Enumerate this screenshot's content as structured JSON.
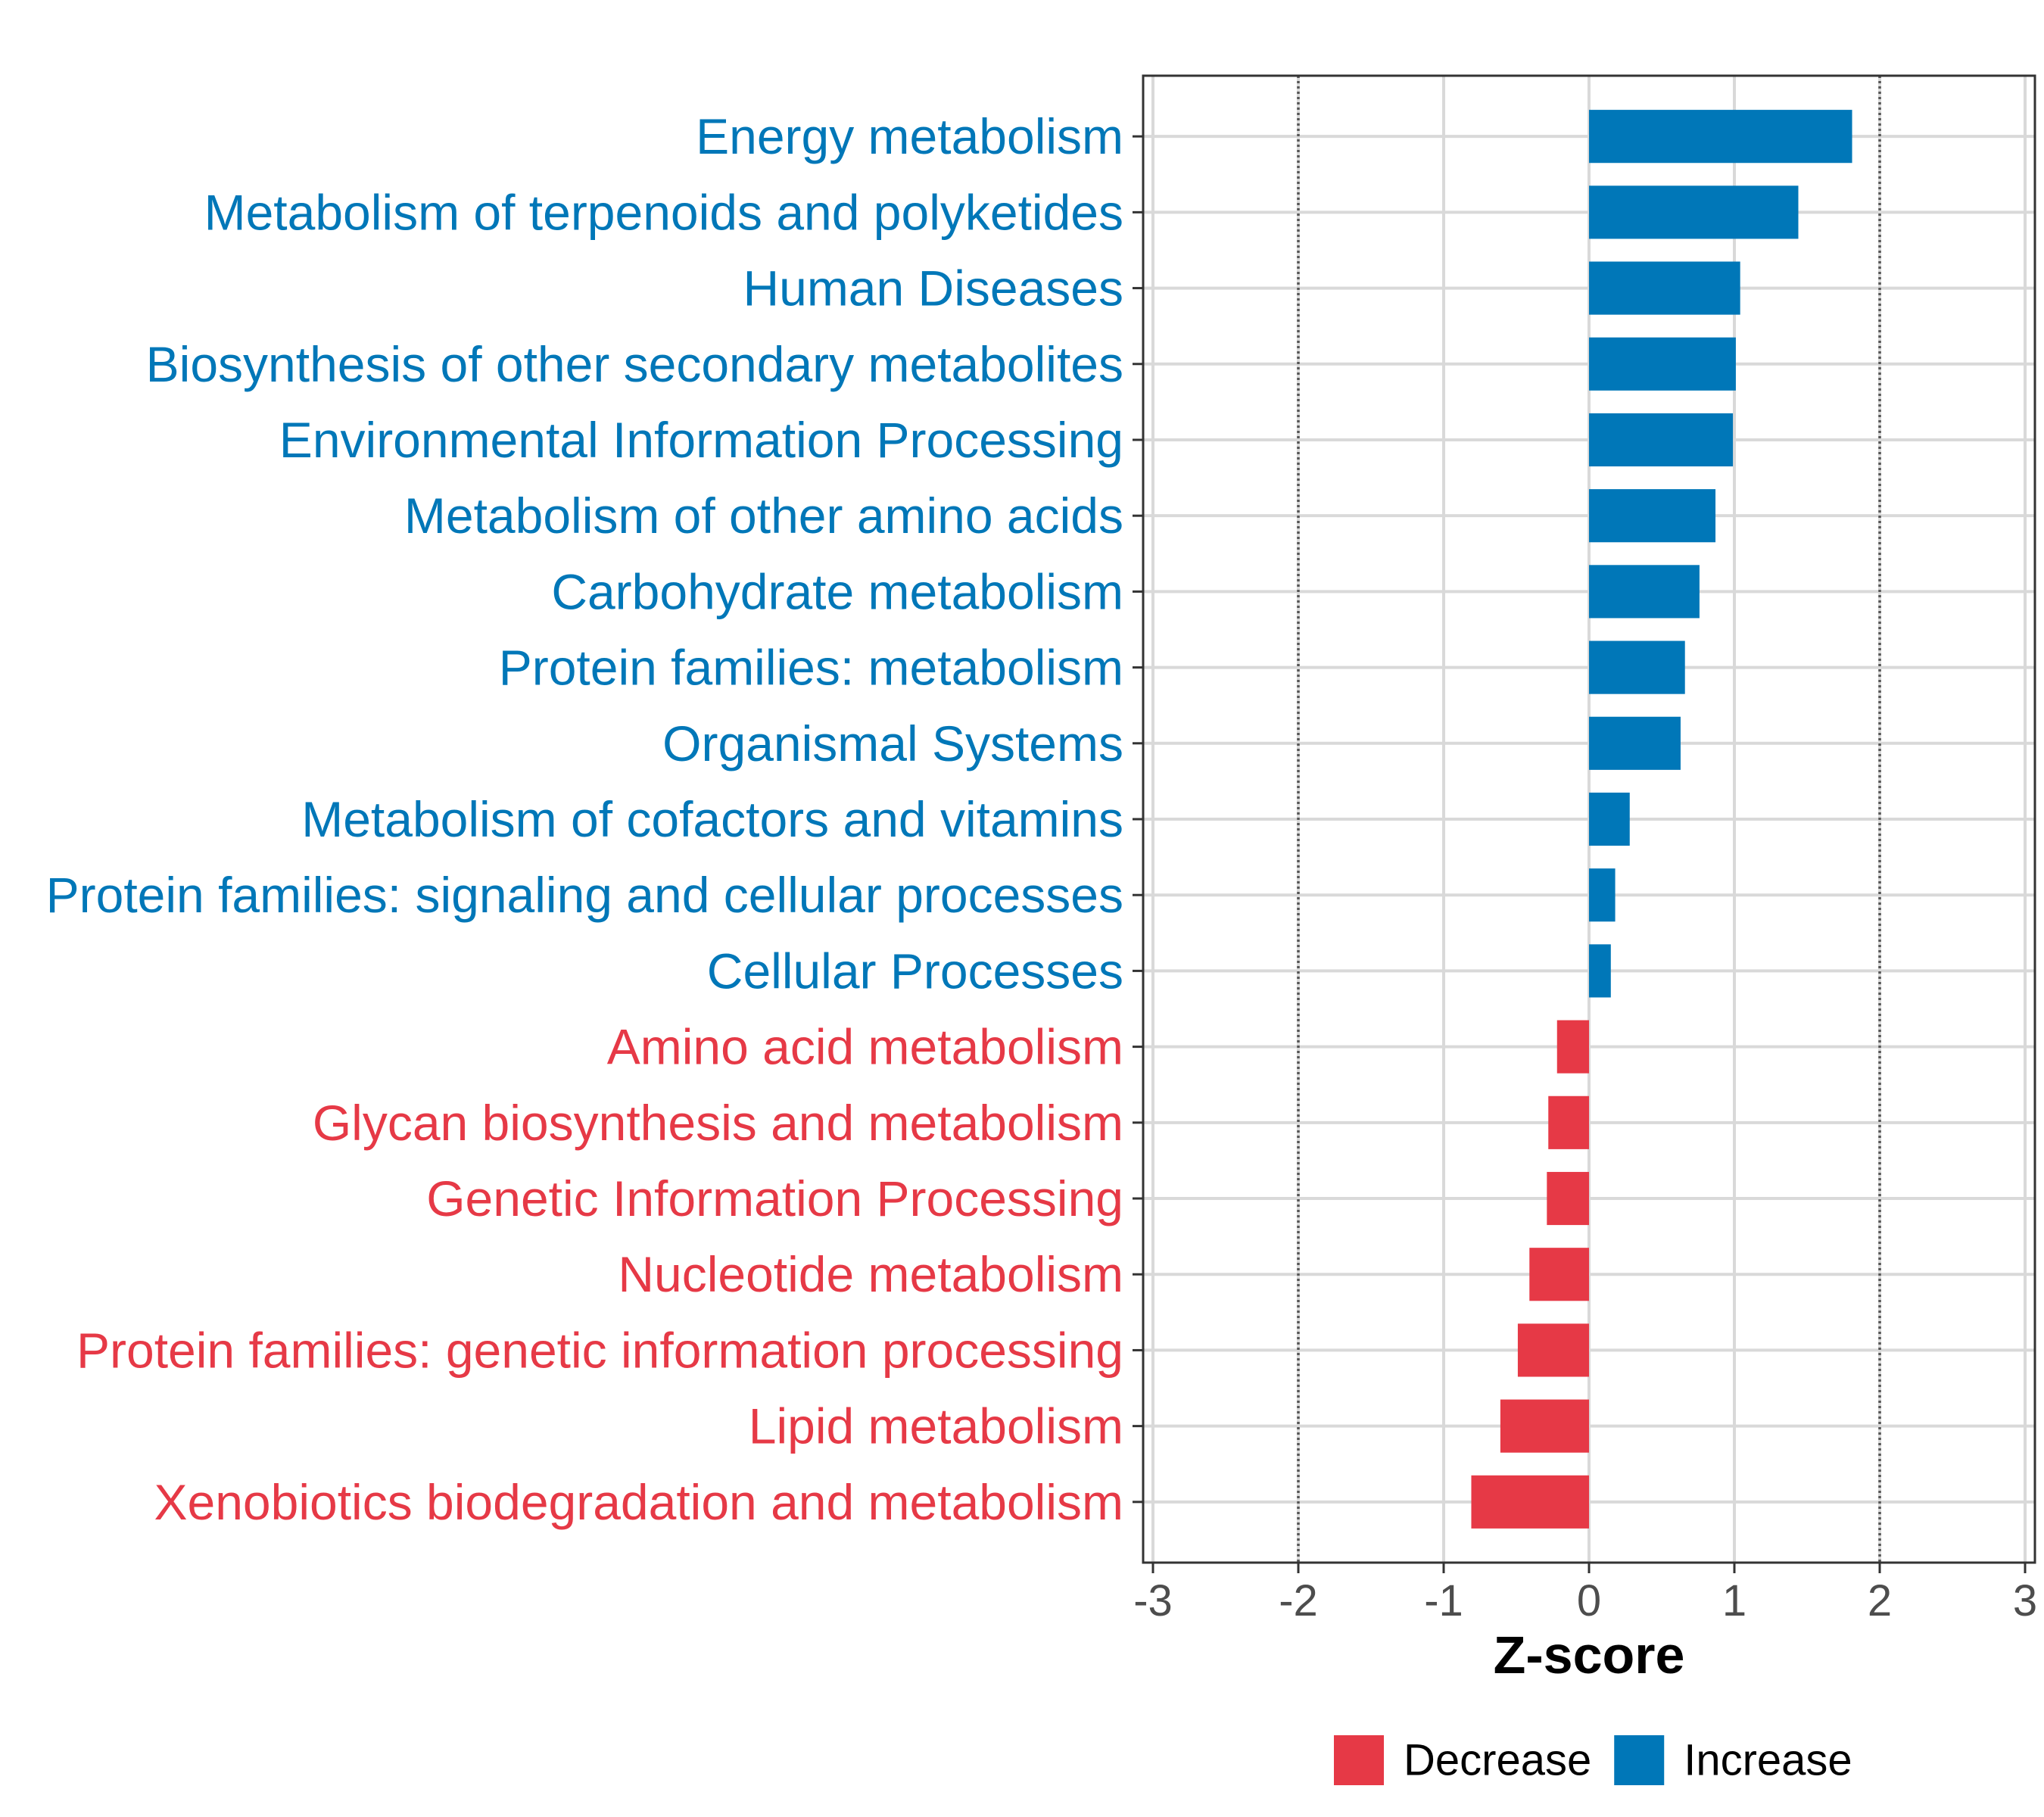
{
  "chart_data": {
    "type": "bar",
    "orientation": "horizontal",
    "xlabel": "Z-score",
    "xlim": [
      -3,
      3
    ],
    "xticks": [
      "-3",
      "-2",
      "-1",
      "0",
      "1",
      "2",
      "3"
    ],
    "reference_lines": [
      -2,
      2
    ],
    "grid": true,
    "legend_position": "bottom",
    "colors": {
      "Increase": "#0077b8",
      "Decrease": "#e63946"
    },
    "legend": [
      {
        "label": "Decrease",
        "group": "Decrease"
      },
      {
        "label": "Increase",
        "group": "Increase"
      }
    ],
    "categories": [
      "Energy metabolism",
      "Metabolism of terpenoids and polyketides",
      "Human Diseases",
      "Biosynthesis of other secondary metabolites",
      "Environmental Information Processing",
      "Metabolism of other amino acids",
      "Carbohydrate metabolism",
      "Protein families: metabolism",
      "Organismal Systems",
      "Metabolism of cofactors and vitamins",
      "Protein families: signaling and cellular processes",
      "Cellular Processes",
      "Amino acid metabolism",
      "Glycan biosynthesis and metabolism",
      "Genetic Information Processing",
      "Nucleotide metabolism",
      "Protein families: genetic information processing",
      "Lipid metabolism",
      "Xenobiotics biodegradation and metabolism"
    ],
    "values": [
      1.81,
      1.44,
      1.04,
      1.01,
      0.99,
      0.87,
      0.76,
      0.66,
      0.63,
      0.28,
      0.18,
      0.15,
      -0.22,
      -0.28,
      -0.29,
      -0.41,
      -0.49,
      -0.61,
      -0.81
    ],
    "groups": [
      "Increase",
      "Increase",
      "Increase",
      "Increase",
      "Increase",
      "Increase",
      "Increase",
      "Increase",
      "Increase",
      "Increase",
      "Increase",
      "Increase",
      "Decrease",
      "Decrease",
      "Decrease",
      "Decrease",
      "Decrease",
      "Decrease",
      "Decrease"
    ]
  }
}
